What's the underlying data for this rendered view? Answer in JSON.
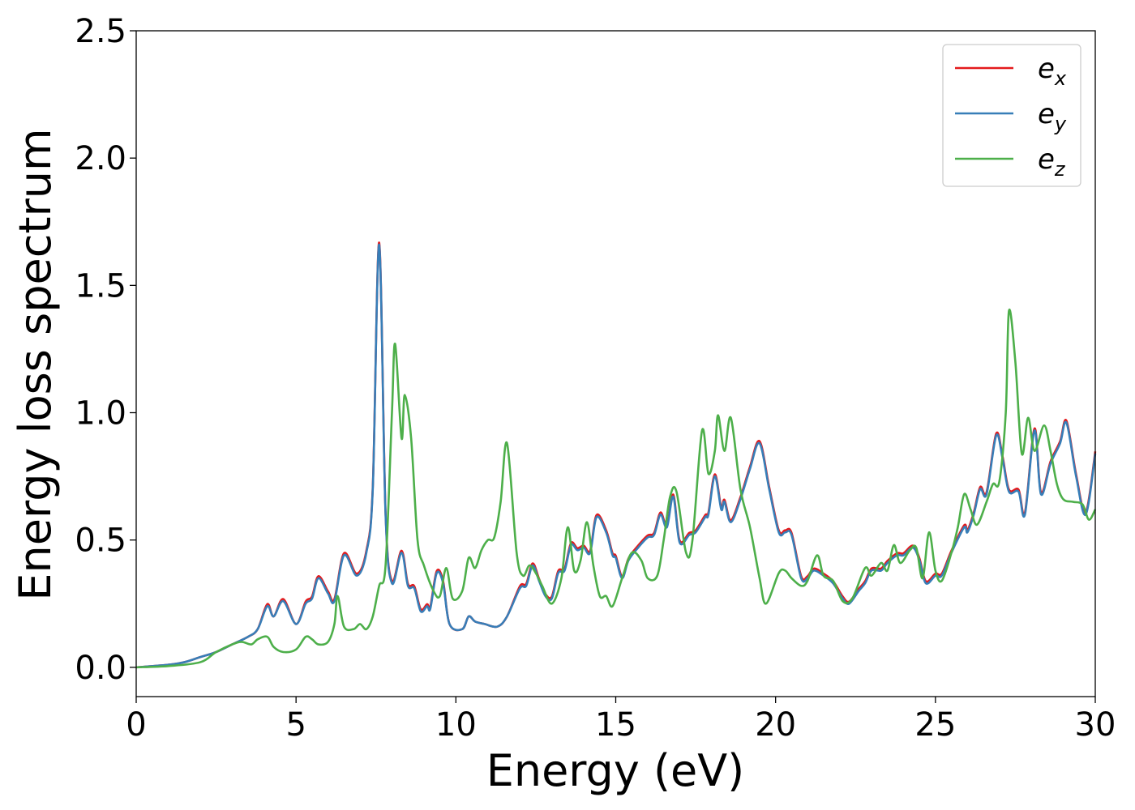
{
  "chart_data": {
    "type": "line",
    "title": "",
    "xlabel": "Energy (eV)",
    "ylabel": "Energy loss spectrum",
    "xlim": [
      0,
      30
    ],
    "ylim": [
      -0.115,
      2.5
    ],
    "xticks": [
      0,
      5,
      10,
      15,
      20,
      25,
      30
    ],
    "xtick_labels": [
      "0",
      "5",
      "10",
      "15",
      "20",
      "25",
      "30"
    ],
    "yticks": [
      0.0,
      0.5,
      1.0,
      1.5,
      2.0,
      2.5
    ],
    "ytick_labels": [
      "0.0",
      "0.5",
      "1.0",
      "1.5",
      "2.0",
      "2.5"
    ],
    "grid": false,
    "legend_position": "top-right",
    "series": [
      {
        "name": "e_x",
        "label_base": "e",
        "label_sub": "x",
        "color": "#e41a1c",
        "ref": "e_y",
        "offset": 0.008
      },
      {
        "name": "e_y",
        "label_base": "e",
        "label_sub": "y",
        "color": "#377eb8",
        "x": [
          0,
          1,
          1.5,
          2,
          2.5,
          3,
          3.5,
          3.8,
          4.1,
          4.3,
          4.6,
          5.0,
          5.3,
          5.5,
          5.7,
          6.0,
          6.2,
          6.5,
          6.9,
          7.2,
          7.4,
          7.6,
          7.8,
          8.0,
          8.3,
          8.5,
          8.7,
          8.9,
          9.1,
          9.2,
          9.4,
          9.6,
          9.8,
          10.2,
          10.4,
          10.6,
          10.9,
          11.3,
          11.6,
          12.0,
          12.2,
          12.4,
          12.6,
          12.8,
          13.0,
          13.2,
          13.4,
          13.6,
          13.8,
          14.0,
          14.2,
          14.4,
          14.7,
          14.9,
          15.0,
          15.2,
          15.4,
          15.7,
          16.0,
          16.2,
          16.4,
          16.6,
          16.8,
          17.0,
          17.3,
          17.5,
          17.8,
          17.9,
          18.1,
          18.3,
          18.4,
          18.6,
          18.9,
          19.2,
          19.5,
          19.8,
          20.1,
          20.3,
          20.5,
          20.8,
          21.0,
          21.2,
          21.5,
          21.8,
          22.1,
          22.3,
          22.6,
          22.8,
          23.0,
          23.3,
          23.5,
          23.8,
          24.0,
          24.3,
          24.5,
          24.7,
          25.0,
          25.2,
          25.5,
          25.9,
          26.0,
          26.2,
          26.4,
          26.6,
          26.9,
          27.1,
          27.3,
          27.6,
          27.8,
          28.1,
          28.3,
          28.6,
          28.9,
          29.1,
          29.4,
          29.7,
          30.0
        ],
        "y": [
          0,
          0.01,
          0.02,
          0.04,
          0.06,
          0.09,
          0.12,
          0.15,
          0.24,
          0.2,
          0.26,
          0.17,
          0.25,
          0.27,
          0.35,
          0.29,
          0.26,
          0.44,
          0.36,
          0.45,
          0.7,
          1.66,
          0.6,
          0.33,
          0.45,
          0.32,
          0.31,
          0.22,
          0.24,
          0.23,
          0.37,
          0.33,
          0.17,
          0.15,
          0.2,
          0.18,
          0.17,
          0.16,
          0.2,
          0.31,
          0.32,
          0.4,
          0.34,
          0.28,
          0.27,
          0.37,
          0.38,
          0.48,
          0.46,
          0.47,
          0.45,
          0.59,
          0.53,
          0.44,
          0.43,
          0.35,
          0.42,
          0.47,
          0.51,
          0.52,
          0.6,
          0.55,
          0.67,
          0.49,
          0.52,
          0.53,
          0.59,
          0.6,
          0.75,
          0.62,
          0.65,
          0.57,
          0.66,
          0.78,
          0.88,
          0.7,
          0.53,
          0.53,
          0.52,
          0.35,
          0.35,
          0.38,
          0.36,
          0.33,
          0.27,
          0.25,
          0.3,
          0.33,
          0.38,
          0.38,
          0.41,
          0.44,
          0.44,
          0.47,
          0.42,
          0.33,
          0.36,
          0.36,
          0.45,
          0.55,
          0.53,
          0.6,
          0.7,
          0.68,
          0.91,
          0.82,
          0.69,
          0.69,
          0.6,
          0.93,
          0.68,
          0.8,
          0.88,
          0.96,
          0.75,
          0.6,
          0.84
        ]
      },
      {
        "name": "e_z",
        "label_base": "e",
        "label_sub": "z",
        "color": "#4daf4a",
        "x": [
          0,
          1,
          2,
          2.5,
          3,
          3.3,
          3.6,
          3.8,
          4.1,
          4.3,
          4.6,
          5.0,
          5.3,
          5.5,
          5.7,
          6.0,
          6.2,
          6.3,
          6.5,
          6.8,
          7.0,
          7.2,
          7.4,
          7.6,
          7.8,
          8.0,
          8.1,
          8.3,
          8.4,
          8.6,
          8.8,
          9.0,
          9.3,
          9.5,
          9.7,
          9.9,
          10.2,
          10.4,
          10.6,
          10.8,
          11.0,
          11.2,
          11.4,
          11.6,
          11.9,
          12.1,
          12.3,
          12.5,
          12.7,
          13.0,
          13.3,
          13.5,
          13.7,
          13.9,
          14.1,
          14.3,
          14.5,
          14.7,
          14.9,
          15.2,
          15.5,
          15.8,
          16.0,
          16.3,
          16.5,
          16.7,
          16.9,
          17.2,
          17.4,
          17.7,
          17.9,
          18.1,
          18.2,
          18.4,
          18.6,
          18.9,
          19.2,
          19.5,
          19.7,
          20.1,
          20.3,
          20.5,
          20.8,
          21.0,
          21.3,
          21.5,
          21.8,
          22.1,
          22.4,
          22.8,
          23.0,
          23.3,
          23.5,
          23.7,
          23.9,
          24.2,
          24.4,
          24.6,
          24.8,
          25.0,
          25.2,
          25.5,
          25.7,
          25.9,
          26.1,
          26.3,
          26.6,
          26.8,
          27.0,
          27.2,
          27.3,
          27.5,
          27.7,
          27.9,
          28.1,
          28.4,
          28.6,
          28.8,
          29.0,
          29.3,
          29.6,
          29.8,
          30.0
        ],
        "y": [
          0,
          0.005,
          0.02,
          0.06,
          0.09,
          0.1,
          0.09,
          0.11,
          0.12,
          0.08,
          0.06,
          0.07,
          0.12,
          0.11,
          0.09,
          0.1,
          0.17,
          0.28,
          0.16,
          0.15,
          0.17,
          0.15,
          0.2,
          0.32,
          0.4,
          1.0,
          1.27,
          0.9,
          1.07,
          0.9,
          0.5,
          0.4,
          0.3,
          0.28,
          0.39,
          0.27,
          0.3,
          0.43,
          0.39,
          0.46,
          0.5,
          0.51,
          0.65,
          0.88,
          0.45,
          0.36,
          0.4,
          0.37,
          0.32,
          0.25,
          0.35,
          0.55,
          0.38,
          0.42,
          0.57,
          0.4,
          0.28,
          0.28,
          0.24,
          0.35,
          0.45,
          0.42,
          0.35,
          0.36,
          0.5,
          0.67,
          0.69,
          0.45,
          0.5,
          0.93,
          0.76,
          0.85,
          0.99,
          0.85,
          0.98,
          0.7,
          0.55,
          0.35,
          0.25,
          0.37,
          0.38,
          0.35,
          0.32,
          0.34,
          0.44,
          0.36,
          0.34,
          0.26,
          0.27,
          0.39,
          0.36,
          0.41,
          0.38,
          0.48,
          0.41,
          0.46,
          0.47,
          0.35,
          0.53,
          0.38,
          0.34,
          0.45,
          0.55,
          0.68,
          0.62,
          0.56,
          0.65,
          0.72,
          0.73,
          1.0,
          1.4,
          1.2,
          0.84,
          0.98,
          0.85,
          0.95,
          0.85,
          0.72,
          0.66,
          0.65,
          0.64,
          0.58,
          0.62
        ]
      }
    ]
  }
}
